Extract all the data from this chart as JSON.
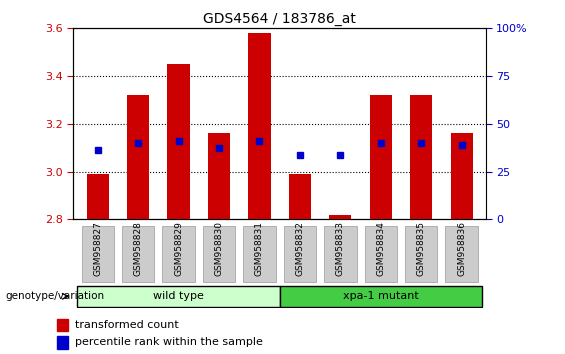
{
  "title": "GDS4564 / 183786_at",
  "samples": [
    "GSM958827",
    "GSM958828",
    "GSM958829",
    "GSM958830",
    "GSM958831",
    "GSM958832",
    "GSM958833",
    "GSM958834",
    "GSM958835",
    "GSM958836"
  ],
  "bar_base": 2.8,
  "bar_tops": [
    2.99,
    3.32,
    3.45,
    3.16,
    3.58,
    2.99,
    2.82,
    3.32,
    3.32,
    3.16
  ],
  "percentile_values": [
    3.09,
    3.12,
    3.13,
    3.1,
    3.13,
    3.07,
    3.07,
    3.12,
    3.12,
    3.11
  ],
  "ylim": [
    2.8,
    3.6
  ],
  "yticks_left": [
    2.8,
    3.0,
    3.2,
    3.4,
    3.6
  ],
  "right_yticks": [
    0,
    25,
    50,
    75,
    100
  ],
  "right_ylim": [
    0,
    100
  ],
  "bar_color": "#cc0000",
  "dot_color": "#0000cc",
  "xlabel_color": "#cc0000",
  "right_ylabel_color": "#0000cc",
  "tick_bg_color": "#cccccc",
  "group_bar_wild_color": "#ccffcc",
  "group_bar_mutant_color": "#44cc44",
  "legend_red_label": "transformed count",
  "legend_blue_label": "percentile rank within the sample",
  "genotype_label": "genotype/variation"
}
